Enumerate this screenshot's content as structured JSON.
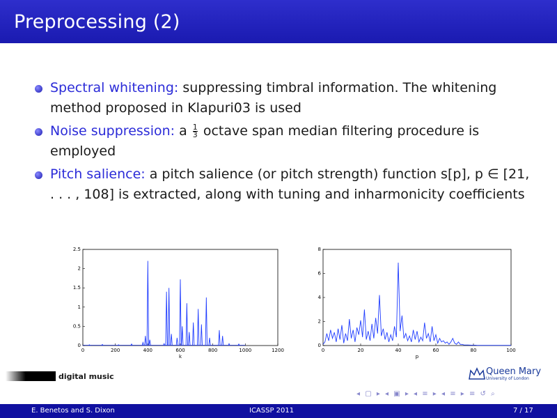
{
  "slide": {
    "title": "Preprocessing (2)"
  },
  "bullets": [
    {
      "term": "Spectral whitening:",
      "text": " suppressing timbral information. The whitening method proposed in Klapuri03 is used"
    },
    {
      "term": "Noise suppression:",
      "text_before": " a ",
      "frac_num": "1",
      "frac_den": "3",
      "text_after": " octave span median filtering procedure is employed"
    },
    {
      "term": "Pitch salience:",
      "text": " a pitch salience (or pitch strength) function s[p], p ∈ [21, . . . , 108] is extracted, along with tuning and inharmonicity coefficients"
    }
  ],
  "chart_data": [
    {
      "type": "line",
      "xlabel": "k",
      "ylabel": "",
      "xlim": [
        0,
        1200
      ],
      "ylim": [
        0,
        2.5
      ],
      "xticks": [
        "0",
        "200",
        "400",
        "600",
        "800",
        "1000",
        "1200"
      ],
      "yticks": [
        "0",
        "0.5",
        "1",
        "1.5",
        "2",
        "2.5"
      ],
      "peaks": [
        {
          "x": 40,
          "y": 0.02
        },
        {
          "x": 120,
          "y": 0.03
        },
        {
          "x": 220,
          "y": 0.02
        },
        {
          "x": 300,
          "y": 0.04
        },
        {
          "x": 370,
          "y": 0.08
        },
        {
          "x": 385,
          "y": 0.25
        },
        {
          "x": 400,
          "y": 2.2
        },
        {
          "x": 412,
          "y": 0.15
        },
        {
          "x": 500,
          "y": 0.05
        },
        {
          "x": 515,
          "y": 1.4
        },
        {
          "x": 530,
          "y": 1.5
        },
        {
          "x": 545,
          "y": 0.3
        },
        {
          "x": 580,
          "y": 0.2
        },
        {
          "x": 600,
          "y": 1.72
        },
        {
          "x": 612,
          "y": 0.5
        },
        {
          "x": 640,
          "y": 1.1
        },
        {
          "x": 655,
          "y": 0.35
        },
        {
          "x": 680,
          "y": 0.6
        },
        {
          "x": 710,
          "y": 0.95
        },
        {
          "x": 730,
          "y": 0.55
        },
        {
          "x": 760,
          "y": 1.25
        },
        {
          "x": 780,
          "y": 0.2
        },
        {
          "x": 840,
          "y": 0.4
        },
        {
          "x": 860,
          "y": 0.25
        },
        {
          "x": 900,
          "y": 0.05
        },
        {
          "x": 960,
          "y": 0.04
        }
      ]
    },
    {
      "type": "line",
      "xlabel": "p",
      "ylabel": "",
      "xlim": [
        0,
        100
      ],
      "ylim": [
        0,
        8
      ],
      "xticks": [
        "0",
        "20",
        "40",
        "60",
        "80",
        "100"
      ],
      "yticks": [
        "0",
        "2",
        "4",
        "6",
        "8"
      ],
      "x": [
        0,
        1,
        2,
        3,
        4,
        5,
        6,
        7,
        8,
        9,
        10,
        11,
        12,
        13,
        14,
        15,
        16,
        17,
        18,
        19,
        20,
        21,
        22,
        23,
        24,
        25,
        26,
        27,
        28,
        29,
        30,
        31,
        32,
        33,
        34,
        35,
        36,
        37,
        38,
        39,
        40,
        41,
        42,
        43,
        44,
        45,
        46,
        47,
        48,
        49,
        50,
        51,
        52,
        53,
        54,
        55,
        56,
        57,
        58,
        59,
        60,
        61,
        62,
        63,
        64,
        65,
        66,
        67,
        68,
        69,
        70,
        71,
        72,
        73,
        74,
        75,
        76,
        77,
        78,
        79,
        80,
        81,
        82,
        83,
        84,
        85,
        86,
        87,
        88,
        89,
        90,
        91,
        92,
        93,
        94,
        95,
        96,
        97,
        98,
        99,
        100
      ],
      "y": [
        0.1,
        0.3,
        1.0,
        0.4,
        1.3,
        0.6,
        1.1,
        0.3,
        1.4,
        0.5,
        1.7,
        0.2,
        1.0,
        0.4,
        2.2,
        0.6,
        1.3,
        0.3,
        1.5,
        0.9,
        2.1,
        0.7,
        3.0,
        0.5,
        1.2,
        0.4,
        1.8,
        0.6,
        2.3,
        1.0,
        4.2,
        0.8,
        1.4,
        0.5,
        1.1,
        0.3,
        0.9,
        0.4,
        1.6,
        0.7,
        6.9,
        1.2,
        2.5,
        0.6,
        1.0,
        0.4,
        0.8,
        0.3,
        1.3,
        0.5,
        1.2,
        0.3,
        0.7,
        0.4,
        1.9,
        0.6,
        1.0,
        0.3,
        1.6,
        0.4,
        0.9,
        0.2,
        0.6,
        0.3,
        0.4,
        0.2,
        0.3,
        0.1,
        0.3,
        0.6,
        0.2,
        0.1,
        0.3,
        0.1,
        0.1,
        0.05,
        0.05,
        0.05,
        0.04,
        0.03,
        0.03,
        0.03,
        0.02,
        0.02,
        0.02,
        0.02,
        0.02,
        0.02,
        0.02,
        0.02,
        0.02,
        0.02,
        0.02,
        0.02,
        0.02,
        0.02,
        0.02,
        0.02,
        0.02,
        0.02,
        0.02
      ]
    }
  ],
  "logos": {
    "left": "digital music",
    "right_name": "Queen Mary",
    "right_sub": "University of London"
  },
  "nav": {
    "symbols": "◂ ▢ ▸ ◂ ▣ ▸ ◂ ≡ ▸ ◂ ≡ ▸ ≡ ↺ ⌕"
  },
  "footer": {
    "authors": "E. Benetos and S. Dixon",
    "venue": "ICASSP 2011",
    "page": "7 / 17"
  },
  "colors": {
    "title_bg": "#1a1ab0",
    "highlight": "#2b2bd8",
    "line": "#1f3cff"
  }
}
